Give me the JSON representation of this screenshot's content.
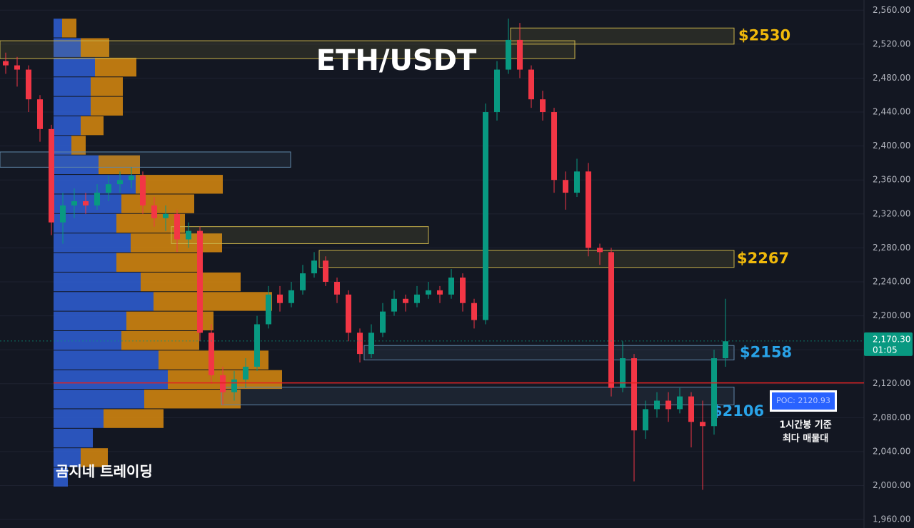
{
  "chart_data": {
    "type": "candlestick",
    "title": "ETH/USDT",
    "watermark": "곰지네 트레이딩",
    "ylim": [
      1950,
      2572
    ],
    "yticks": [
      {
        "value": 2560,
        "label": "2,560.00"
      },
      {
        "value": 2520,
        "label": "2,520.00"
      },
      {
        "value": 2480,
        "label": "2,480.00"
      },
      {
        "value": 2440,
        "label": "2,440.00"
      },
      {
        "value": 2400,
        "label": "2,400.00"
      },
      {
        "value": 2360,
        "label": "2,360.00"
      },
      {
        "value": 2320,
        "label": "2,320.00"
      },
      {
        "value": 2280,
        "label": "2,280.00"
      },
      {
        "value": 2240,
        "label": "2,240.00"
      },
      {
        "value": 2200,
        "label": "2,200.00"
      },
      {
        "value": 2160,
        "label": "2,160.00"
      },
      {
        "value": 2120,
        "label": "2,120.00"
      },
      {
        "value": 2080,
        "label": "2,080.00"
      },
      {
        "value": 2040,
        "label": "2,040.00"
      },
      {
        "value": 2000,
        "label": "2,000.00"
      },
      {
        "value": 1960,
        "label": "1,960.00"
      }
    ],
    "grid": true,
    "up_color": "#089981",
    "down_color": "#f23645",
    "ohlc": [
      [
        2500,
        2510,
        2485,
        2495
      ],
      [
        2495,
        2505,
        2470,
        2490
      ],
      [
        2490,
        2495,
        2440,
        2455
      ],
      [
        2455,
        2460,
        2405,
        2420
      ],
      [
        2420,
        2425,
        2295,
        2310
      ],
      [
        2310,
        2345,
        2285,
        2330
      ],
      [
        2330,
        2350,
        2315,
        2335
      ],
      [
        2335,
        2345,
        2320,
        2330
      ],
      [
        2330,
        2355,
        2325,
        2345
      ],
      [
        2345,
        2365,
        2335,
        2355
      ],
      [
        2355,
        2370,
        2345,
        2360
      ],
      [
        2360,
        2375,
        2350,
        2365
      ],
      [
        2365,
        2370,
        2320,
        2330
      ],
      [
        2330,
        2340,
        2305,
        2315
      ],
      [
        2315,
        2330,
        2300,
        2320
      ],
      [
        2320,
        2325,
        2275,
        2290
      ],
      [
        2290,
        2310,
        2280,
        2300
      ],
      [
        2300,
        2305,
        2170,
        2180
      ],
      [
        2180,
        2190,
        2120,
        2130
      ],
      [
        2130,
        2140,
        2095,
        2110
      ],
      [
        2110,
        2135,
        2100,
        2125
      ],
      [
        2125,
        2150,
        2115,
        2140
      ],
      [
        2140,
        2200,
        2135,
        2190
      ],
      [
        2190,
        2235,
        2185,
        2225
      ],
      [
        2225,
        2235,
        2205,
        2215
      ],
      [
        2215,
        2240,
        2210,
        2230
      ],
      [
        2230,
        2260,
        2225,
        2250
      ],
      [
        2250,
        2275,
        2245,
        2265
      ],
      [
        2265,
        2270,
        2235,
        2240
      ],
      [
        2240,
        2245,
        2215,
        2225
      ],
      [
        2225,
        2230,
        2170,
        2180
      ],
      [
        2180,
        2185,
        2145,
        2155
      ],
      [
        2155,
        2190,
        2150,
        2180
      ],
      [
        2180,
        2215,
        2175,
        2205
      ],
      [
        2205,
        2230,
        2200,
        2220
      ],
      [
        2220,
        2225,
        2205,
        2215
      ],
      [
        2215,
        2235,
        2210,
        2225
      ],
      [
        2225,
        2240,
        2220,
        2230
      ],
      [
        2230,
        2235,
        2215,
        2225
      ],
      [
        2225,
        2255,
        2220,
        2245
      ],
      [
        2245,
        2250,
        2205,
        2215
      ],
      [
        2215,
        2220,
        2185,
        2195
      ],
      [
        2195,
        2450,
        2190,
        2440
      ],
      [
        2440,
        2500,
        2430,
        2490
      ],
      [
        2490,
        2550,
        2485,
        2525
      ],
      [
        2525,
        2545,
        2480,
        2490
      ],
      [
        2490,
        2495,
        2445,
        2455
      ],
      [
        2455,
        2465,
        2430,
        2440
      ],
      [
        2440,
        2445,
        2345,
        2360
      ],
      [
        2360,
        2370,
        2325,
        2345
      ],
      [
        2345,
        2385,
        2340,
        2370
      ],
      [
        2370,
        2380,
        2270,
        2280
      ],
      [
        2280,
        2285,
        2260,
        2275
      ],
      [
        2275,
        2280,
        2105,
        2115
      ],
      [
        2115,
        2170,
        2110,
        2150
      ],
      [
        2150,
        2155,
        2005,
        2065
      ],
      [
        2065,
        2100,
        2055,
        2090
      ],
      [
        2090,
        2110,
        2080,
        2100
      ],
      [
        2100,
        2110,
        2075,
        2090
      ],
      [
        2090,
        2115,
        2085,
        2105
      ],
      [
        2105,
        2110,
        2045,
        2075
      ],
      [
        2075,
        2100,
        1995,
        2070
      ],
      [
        2070,
        2160,
        2060,
        2150
      ],
      [
        2150,
        2220,
        2140,
        2170
      ]
    ],
    "volume_profile": {
      "price_bins": [
        2550,
        2527,
        2504,
        2481,
        2458,
        2435,
        2412,
        2389,
        2366,
        2343,
        2320,
        2297,
        2274,
        2251,
        2228,
        2205,
        2182,
        2159,
        2136,
        2113,
        2090,
        2067,
        2044,
        2021,
        1998
      ],
      "up": [
        12,
        38,
        58,
        52,
        52,
        38,
        25,
        63,
        115,
        95,
        88,
        108,
        88,
        122,
        140,
        102,
        95,
        147,
        160,
        127,
        70,
        55,
        38,
        20
      ],
      "down": [
        20,
        40,
        58,
        45,
        45,
        32,
        20,
        58,
        122,
        102,
        96,
        128,
        115,
        140,
        166,
        122,
        109,
        154,
        160,
        135,
        84,
        0,
        38,
        0
      ],
      "up_color": "#2f5fd6",
      "down_color": "#d9890e"
    },
    "zones": [
      {
        "low": 2503,
        "high": 2524,
        "color": "#c9b24a"
      },
      {
        "low": 2520,
        "high": 2539,
        "color": "#c9b24a",
        "label": "$2530"
      },
      {
        "low": 2375,
        "high": 2393,
        "color": "#5f86a8"
      },
      {
        "low": 2285,
        "high": 2305,
        "color": "#c9b24a"
      },
      {
        "low": 2257,
        "high": 2277,
        "color": "#c9b24a",
        "label": "$2267"
      },
      {
        "low": 2148,
        "high": 2165,
        "color": "#5f86a8",
        "label": "$2158"
      },
      {
        "low": 2095,
        "high": 2116,
        "color": "#5f86a8",
        "label": "$2106"
      }
    ],
    "poc": {
      "value": 2120.93,
      "label": "POC: 2120.93",
      "note": [
        "1시간봉 기준",
        "최다 매물대"
      ]
    },
    "last_price": {
      "value": 2170.3,
      "label": "2,170.30",
      "countdown": "01:05"
    }
  }
}
